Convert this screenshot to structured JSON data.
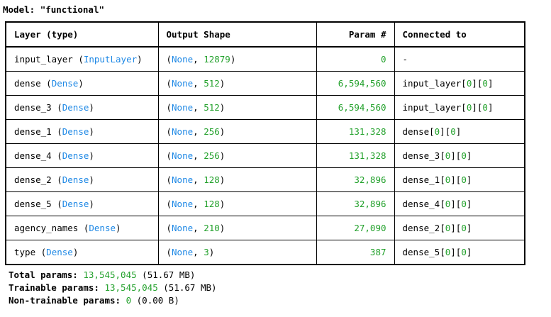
{
  "model": {
    "label": "Model:",
    "name": "\"functional\""
  },
  "headers": {
    "layer": "Layer (type)",
    "output": "Output Shape",
    "params": "Param #",
    "connected": "Connected to"
  },
  "rows": [
    {
      "name": "input_layer",
      "type": "InputLayer",
      "none": "None",
      "dim": "12879",
      "params": "0",
      "connected": "-"
    },
    {
      "name": "dense",
      "type": "Dense",
      "none": "None",
      "dim": "512",
      "params": "6,594,560",
      "connected": "input_layer[0][0]"
    },
    {
      "name": "dense_3",
      "type": "Dense",
      "none": "None",
      "dim": "512",
      "params": "6,594,560",
      "connected": "input_layer[0][0]"
    },
    {
      "name": "dense_1",
      "type": "Dense",
      "none": "None",
      "dim": "256",
      "params": "131,328",
      "connected": "dense[0][0]"
    },
    {
      "name": "dense_4",
      "type": "Dense",
      "none": "None",
      "dim": "256",
      "params": "131,328",
      "connected": "dense_3[0][0]"
    },
    {
      "name": "dense_2",
      "type": "Dense",
      "none": "None",
      "dim": "128",
      "params": "32,896",
      "connected": "dense_1[0][0]"
    },
    {
      "name": "dense_5",
      "type": "Dense",
      "none": "None",
      "dim": "128",
      "params": "32,896",
      "connected": "dense_4[0][0]"
    },
    {
      "name": "agency_names",
      "type": "Dense",
      "none": "None",
      "dim": "210",
      "params": "27,090",
      "connected": "dense_2[0][0]"
    },
    {
      "name": "type",
      "type": "Dense",
      "none": "None",
      "dim": "3",
      "params": "387",
      "connected": "dense_5[0][0]"
    }
  ],
  "totals": {
    "total": {
      "label": "Total params:",
      "value": "13,545,045",
      "size": "(51.67 MB)"
    },
    "trainable": {
      "label": "Trainable params:",
      "value": "13,545,045",
      "size": "(51.67 MB)"
    },
    "non_trainable": {
      "label": "Non-trainable params:",
      "value": "0",
      "size": "(0.00 B)"
    }
  },
  "colors": {
    "type_blue": "#1e88e5",
    "number_green": "#23a12c"
  }
}
